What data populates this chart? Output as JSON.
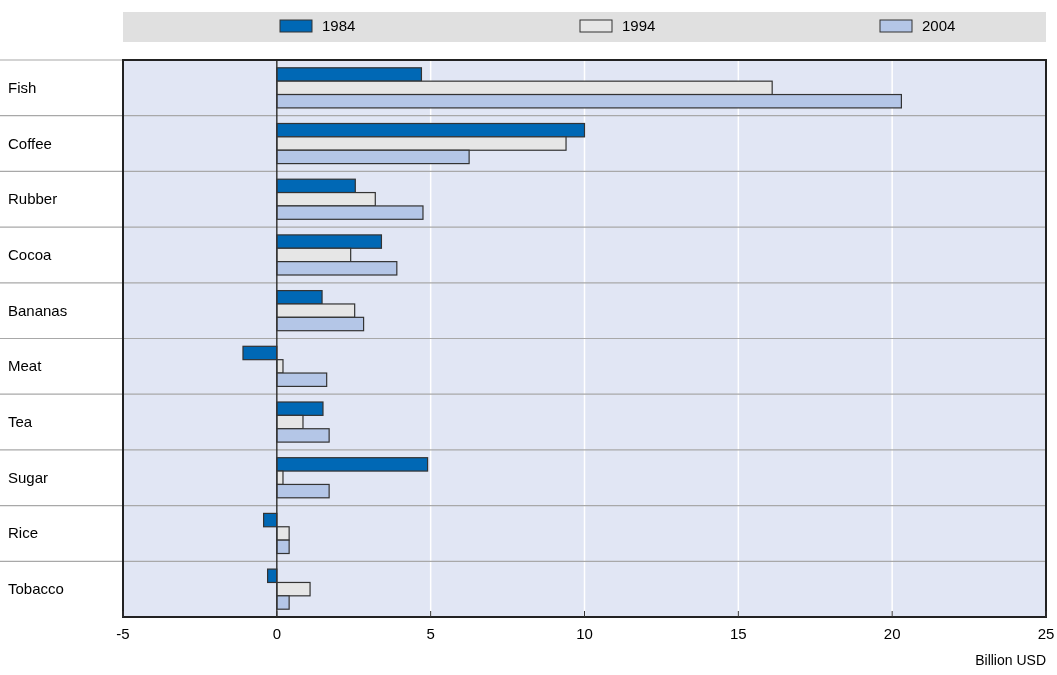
{
  "chart_data": {
    "type": "bar",
    "orientation": "horizontal",
    "xlabel": "Billion USD",
    "categories": [
      "Fish",
      "Coffee",
      "Rubber",
      "Cocoa",
      "Bananas",
      "Meat",
      "Tea",
      "Sugar",
      "Rice",
      "Tobacco"
    ],
    "series": [
      {
        "name": "1984",
        "color": "#0068b5",
        "values": [
          4.7,
          10.0,
          2.55,
          3.4,
          1.47,
          -1.1,
          1.5,
          4.9,
          -0.43,
          -0.3
        ]
      },
      {
        "name": "1994",
        "color": "#e6e6e6",
        "values": [
          16.1,
          9.4,
          3.2,
          2.4,
          2.53,
          0.2,
          0.85,
          0.2,
          0.4,
          1.08
        ]
      },
      {
        "name": "2004",
        "color": "#b4c6e7",
        "values": [
          20.3,
          6.25,
          4.75,
          3.9,
          2.82,
          1.62,
          1.7,
          1.7,
          0.4,
          0.4
        ]
      }
    ],
    "xlim": [
      -5,
      25
    ],
    "xticks": [
      -5,
      0,
      5,
      10,
      15,
      20,
      25
    ],
    "grid": "x",
    "legend": "top"
  }
}
